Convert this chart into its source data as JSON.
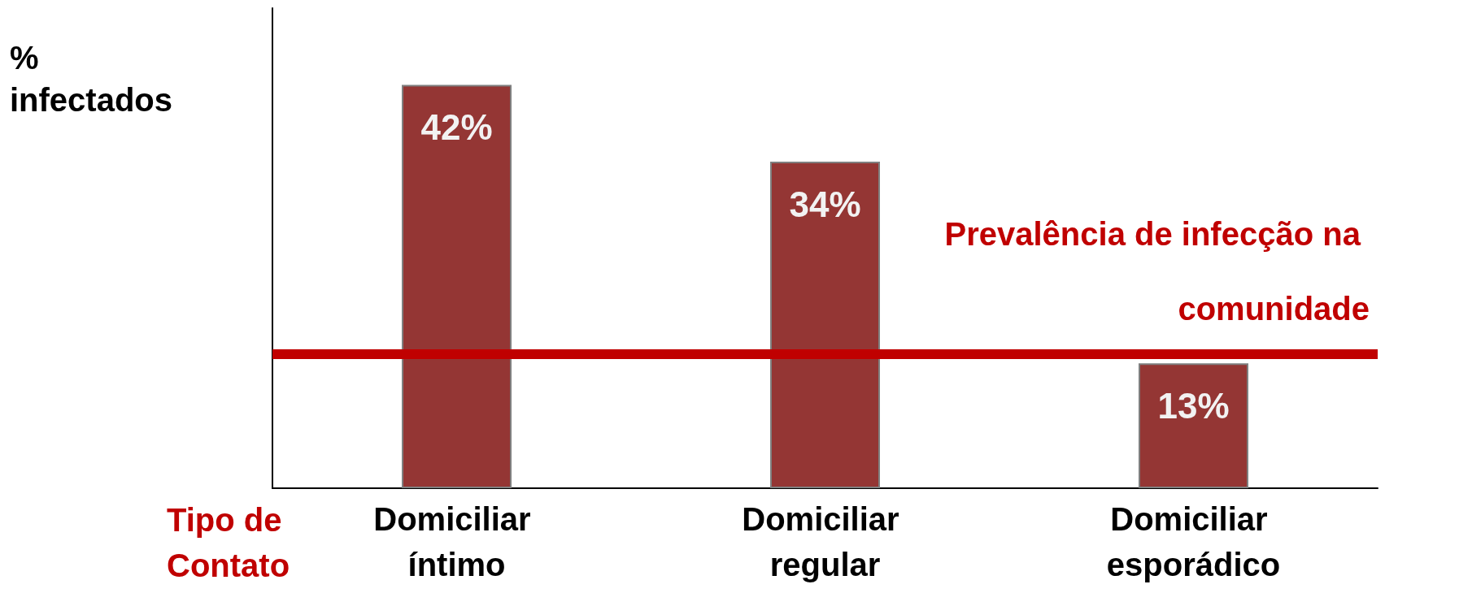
{
  "chart_data": {
    "type": "bar",
    "ylabel": "% infectados",
    "xlabel": "Tipo de Contato",
    "categories": [
      "Domiciliar íntimo",
      "Domiciliar regular",
      "Domiciliar esporádico"
    ],
    "values": [
      42,
      34,
      13
    ],
    "color": "#943634",
    "data_labels": true,
    "value_labels": [
      "42%",
      "34%",
      "13%"
    ],
    "ref_lines": [
      {
        "axis": "y",
        "value": 14,
        "label": "Prevalência de infecção na comunidade",
        "color": "#c00000"
      }
    ],
    "grid": false
  }
}
